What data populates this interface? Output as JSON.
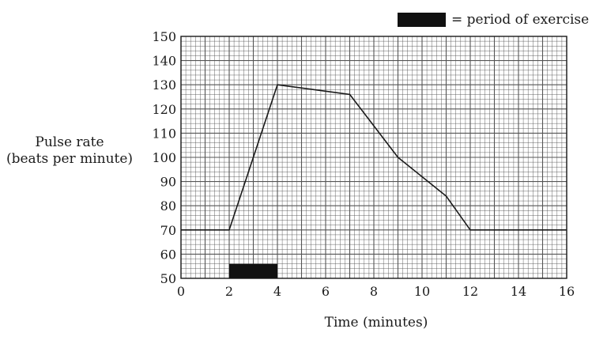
{
  "chart_data": {
    "type": "line",
    "xlabel": "Time (minutes)",
    "ylabel_line1": "Pulse rate",
    "ylabel_line2": "(beats per minute)",
    "xlim": [
      0,
      16
    ],
    "ylim": [
      50,
      150
    ],
    "grid": true,
    "x_ticks": [
      0,
      2,
      4,
      6,
      8,
      10,
      12,
      14,
      16
    ],
    "y_ticks": [
      50,
      60,
      70,
      80,
      90,
      100,
      110,
      120,
      130,
      140,
      150
    ],
    "series": [
      {
        "x": [
          0,
          2,
          4,
          7,
          9,
          11,
          12,
          16
        ],
        "y": [
          70,
          70,
          130,
          126,
          100,
          84,
          70,
          70
        ]
      }
    ],
    "exercise_period": {
      "start": 2,
      "end": 4,
      "y_from": 50,
      "y_to": 56
    },
    "legend": {
      "text": "= period of exercise",
      "placement": "top-right"
    },
    "colors": {
      "line": "#1a1a1a",
      "grid": "#555555",
      "exercise_bar": "#111111"
    }
  }
}
